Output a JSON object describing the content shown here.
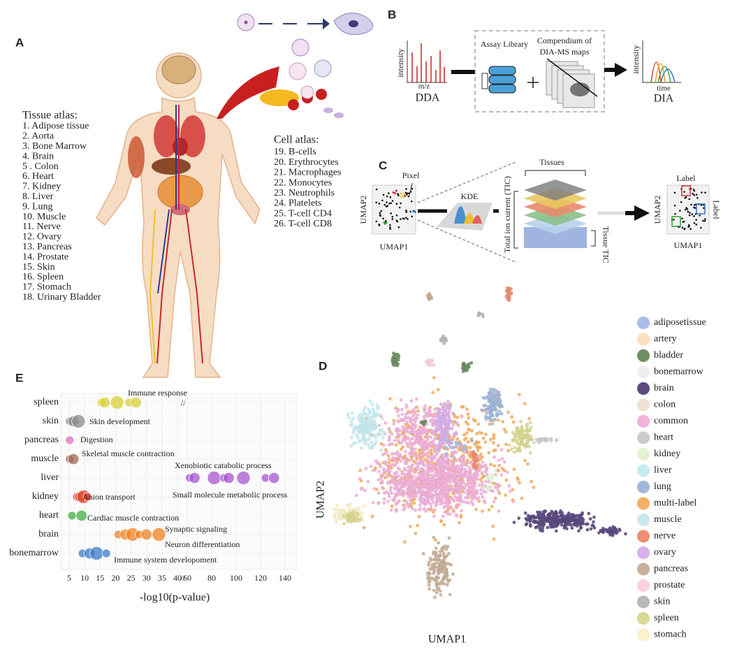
{
  "panel_labels": [
    "A",
    "B",
    "C",
    "D",
    "E"
  ],
  "tissue_atlas": {
    "title": "Tissue atlas:",
    "items": [
      "1.   Adipose tissue",
      "2.   Aorta",
      "3.   Bone Marrow",
      "4.   Brain",
      "5 . Colon",
      "6.   Heart",
      "7.   Kidney",
      "8.   Liver",
      "9.   Lung",
      "10. Muscle",
      "11. Nerve",
      "12. Ovary",
      "13. Pancreas",
      "14. Prostate",
      "15. Skin",
      "16. Spleen",
      "17. Stomach",
      "18. Urinary Bladder"
    ]
  },
  "cell_atlas": {
    "title": "Cell atlas:",
    "items": [
      "19. B-cells",
      "20. Erythrocytes",
      "21. Macrophages",
      "22. Monocytes",
      "23. Neutrophils",
      "24. Platelets",
      "25. T-cell CD4",
      "26. T-cell CD8"
    ]
  },
  "panel_b": {
    "dda_y": "intensity",
    "dda_x": "m/z",
    "dda": "DDA",
    "assay": "Assay Library",
    "compendium": [
      "Compendium of",
      "DIA-MS maps"
    ],
    "dia_y": "intensity",
    "dia_x": "time",
    "dia": "DIA"
  },
  "panel_c": {
    "pixel": "Pixel",
    "umap2": "UMAP2",
    "umap1": "UMAP1",
    "kde": "KDE",
    "tissues": "Tissues",
    "tic": "Total ion current (TIC)",
    "tissue_tic": "Tissue TIC",
    "label_top": "Label",
    "label_side": "Label",
    "umap2_right": "UMAP2",
    "umap1_right": "UMAP1"
  },
  "panel_d": {
    "x_label": "UMAP1",
    "y_label": "UMAP2",
    "legend": [
      {
        "name": "adiposetissue",
        "color": "#a9bde8"
      },
      {
        "name": "artery",
        "color": "#fbe0bf"
      },
      {
        "name": "bladder",
        "color": "#6e8f63"
      },
      {
        "name": "bonemarrow",
        "color": "#eeeeee"
      },
      {
        "name": "brain",
        "color": "#5c4a80"
      },
      {
        "name": "colon",
        "color": "#efe2d2"
      },
      {
        "name": "common",
        "color": "#f2b2dc"
      },
      {
        "name": "heart",
        "color": "#cccccc"
      },
      {
        "name": "kidney",
        "color": "#e2f2d2"
      },
      {
        "name": "liver",
        "color": "#c6ecf2"
      },
      {
        "name": "lung",
        "color": "#a2b8da"
      },
      {
        "name": "multi-label",
        "color": "#f6b062"
      },
      {
        "name": "muscle",
        "color": "#cbe8ec"
      },
      {
        "name": "nerve",
        "color": "#ef8e70"
      },
      {
        "name": "ovary",
        "color": "#d8b0ea"
      },
      {
        "name": "pancreas",
        "color": "#c8b098"
      },
      {
        "name": "prostate",
        "color": "#f9d0e2"
      },
      {
        "name": "skin",
        "color": "#b8b8b8"
      },
      {
        "name": "spleen",
        "color": "#d9d992"
      },
      {
        "name": "stomach",
        "color": "#fbf0c8"
      }
    ]
  },
  "panel_e": {
    "categories": [
      "spleen",
      "skin",
      "pancreas",
      "muscle",
      "liver",
      "kidney",
      "heart",
      "brain",
      "bonemarrow"
    ],
    "colors": [
      "#d8cf3a",
      "#8c8c8c",
      "#e070c0",
      "#a06a5a",
      "#a855d0",
      "#e04830",
      "#40b040",
      "#f08020",
      "#3a7cc8"
    ],
    "bubbles": [
      [
        15.4,
        16.5,
        20.5,
        24.3,
        26.6
      ],
      [
        5.2,
        6.4,
        8
      ],
      [
        5.2
      ],
      [
        5.2,
        6.4
      ],
      [
        62,
        66,
        82,
        90,
        94,
        106,
        124,
        131
      ],
      [
        7.5,
        8.6,
        9.7,
        10.9
      ],
      [
        5.9,
        9
      ],
      [
        20.9,
        23.2,
        25.5,
        27.7,
        30,
        34
      ],
      [
        9.3,
        11.6,
        13.9,
        17
      ]
    ],
    "annotations": [
      "Immune response",
      "Skin development",
      "Digestion",
      "Skeletal muscle contraction",
      "Xenobiotic catabolic process",
      "Small molecule metabolic process",
      "Anion transport",
      "Cardiac muscle contraction",
      "Synaptic signaling",
      "Neuron differentiation",
      "Immune system developoment"
    ],
    "xticks_left": [
      5,
      10,
      15,
      20,
      25,
      30,
      35,
      40
    ],
    "xticks_right": [
      60,
      80,
      100,
      120,
      140
    ],
    "xlim_left": [
      5,
      40
    ],
    "xlim_right": [
      60,
      140
    ],
    "break_mark": "//",
    "x_label": "-log10(p-value)"
  }
}
